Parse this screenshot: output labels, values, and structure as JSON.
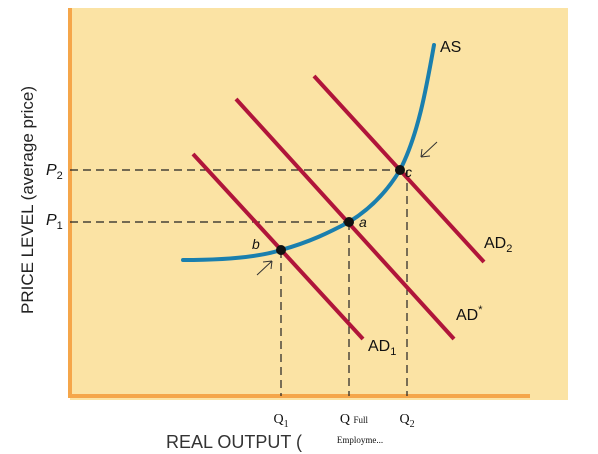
{
  "chart_data": {
    "type": "line",
    "ylabel": "PRICE LEVEL (average price)",
    "xlabel": "REAL OUTPUT (",
    "series": [
      {
        "name": "AS"
      },
      {
        "name": "AD1"
      },
      {
        "name": "AD*"
      },
      {
        "name": "AD2"
      }
    ],
    "labels": {
      "as": "AS",
      "ad1": "AD",
      "ad1_sub": "1",
      "adstar": "AD",
      "adstar_sup": "*",
      "ad2": "AD",
      "ad2_sub": "2"
    },
    "price_levels": [
      {
        "label": "P",
        "sub": "2"
      },
      {
        "label": "P",
        "sub": "1"
      }
    ],
    "output_levels": [
      {
        "label": "Q",
        "sub": "1"
      },
      {
        "label": "Q",
        "extra": "Full",
        "note": "Employme..."
      },
      {
        "label": "Q",
        "sub": "2"
      }
    ],
    "equilibrium_points": [
      {
        "label": "b"
      },
      {
        "label": "a"
      },
      {
        "label": "c"
      }
    ],
    "colors": {
      "panel": "#fbe3a4",
      "axis": "#f5a64a",
      "as_curve": "#1a7fae",
      "ad_lines": "#b0153a",
      "dashed": "#222222",
      "points": "#111111"
    }
  }
}
